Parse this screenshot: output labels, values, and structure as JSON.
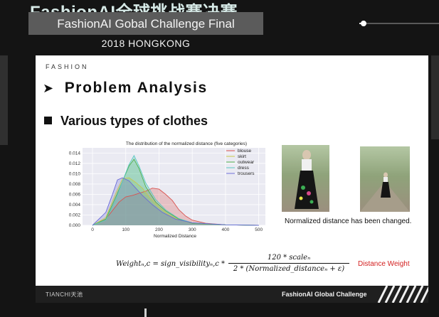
{
  "event": {
    "title_cn": "FashionAI全球挑战赛决赛",
    "subtitle": "FashionAI Gobal Challenge Final",
    "year_location": "2018 HONGKONG"
  },
  "player": {
    "progress_fraction": 0.05
  },
  "slide": {
    "brand": "FASHION",
    "heading_arrow": "➤",
    "heading": "Problem Analysis",
    "subheading": "Various types of clothes",
    "caption": "Normalized distance has been changed.",
    "formula": {
      "lhs": "Weightₙ,c = sign_visibilityₙ,c *",
      "numerator": "120 * scaleₙ",
      "denominator": "2 * (Normalized_distanceₙ + ε)"
    },
    "formula_label": "Distance Weight",
    "footer_logo": "TIANCHI天池",
    "footer_text": "FashionAI Global Challenge"
  },
  "chart_data": {
    "type": "area",
    "title": "The distribution of the normalized distance (five categories)",
    "xlabel": "Normalized Distance",
    "ylabel": "",
    "xlim": [
      -30,
      520
    ],
    "ylim": [
      0,
      0.015
    ],
    "xticks": [
      0,
      100,
      200,
      300,
      400,
      500
    ],
    "yticks": [
      0.0,
      0.002,
      0.004,
      0.006,
      0.008,
      0.01,
      0.012,
      0.014
    ],
    "ytick_labels": [
      "0.000",
      "0.002",
      "0.004",
      "0.006",
      "0.008",
      "0.010",
      "0.012",
      "0.014"
    ],
    "legend_position": "top-right",
    "grid": true,
    "colors": {
      "blouse": "#d9534f",
      "skirt": "#c9c94a",
      "outwear": "#4daf4a",
      "dress": "#5bc8c0",
      "trousers": "#6a6ad8"
    },
    "series": [
      {
        "name": "blouse",
        "x": [
          0,
          40,
          80,
          100,
          120,
          140,
          160,
          180,
          200,
          220,
          240,
          260,
          280,
          300,
          340,
          400,
          500
        ],
        "y": [
          0.0,
          0.0012,
          0.0045,
          0.0055,
          0.0058,
          0.0062,
          0.0066,
          0.0072,
          0.007,
          0.006,
          0.0048,
          0.003,
          0.0018,
          0.001,
          0.0004,
          0.0001,
          0.0
        ]
      },
      {
        "name": "skirt",
        "x": [
          0,
          40,
          70,
          90,
          110,
          130,
          150,
          170,
          200,
          230,
          260,
          300,
          400,
          500
        ],
        "y": [
          0.0,
          0.0015,
          0.0062,
          0.009,
          0.0092,
          0.0083,
          0.0072,
          0.0055,
          0.0035,
          0.002,
          0.0011,
          0.0004,
          0.0001,
          0.0
        ]
      },
      {
        "name": "outwear",
        "x": [
          0,
          40,
          70,
          90,
          110,
          125,
          140,
          160,
          190,
          220,
          260,
          300,
          400,
          500
        ],
        "y": [
          0.0,
          0.0012,
          0.0055,
          0.0085,
          0.0115,
          0.0128,
          0.011,
          0.0075,
          0.0045,
          0.0028,
          0.0012,
          0.0004,
          0.0001,
          0.0
        ]
      },
      {
        "name": "dress",
        "x": [
          0,
          40,
          70,
          90,
          110,
          125,
          140,
          160,
          190,
          220,
          260,
          300,
          400,
          500
        ],
        "y": [
          0.0,
          0.001,
          0.005,
          0.0085,
          0.0118,
          0.0135,
          0.0115,
          0.0082,
          0.005,
          0.003,
          0.0013,
          0.0005,
          0.0001,
          0.0
        ]
      },
      {
        "name": "trousers",
        "x": [
          0,
          40,
          60,
          75,
          90,
          110,
          130,
          150,
          180,
          210,
          250,
          300,
          400,
          500
        ],
        "y": [
          0.0,
          0.0025,
          0.006,
          0.0088,
          0.0092,
          0.0086,
          0.0072,
          0.0058,
          0.004,
          0.0025,
          0.0012,
          0.0005,
          0.0001,
          0.0
        ]
      }
    ]
  }
}
